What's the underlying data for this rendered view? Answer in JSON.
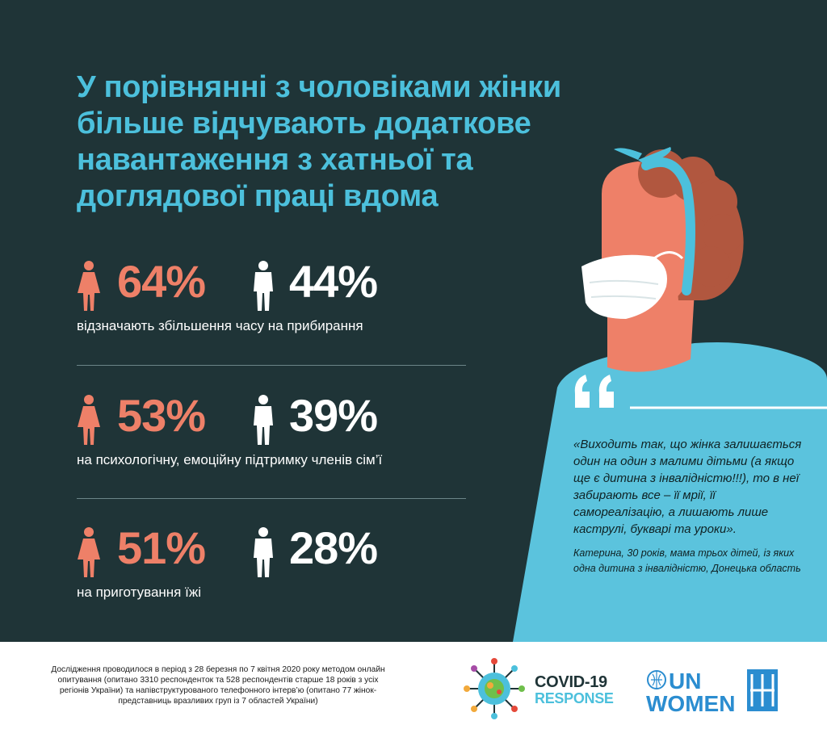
{
  "title": "У порівнянні з чоловіками жінки більше відчувають додаткове навантаження з хатньої та доглядової праці вдома",
  "stats": [
    {
      "women": "64%",
      "men": "44%",
      "caption": "відзначають збільшення часу на прибирання"
    },
    {
      "women": "53%",
      "men": "39%",
      "caption": "на психологічну, емоційну підтримку членів сім’ї"
    },
    {
      "women": "51%",
      "men": "28%",
      "caption": "на приготування їжі"
    }
  ],
  "quote": {
    "text": "«Виходить так, що жінка залишається один на один з малими дітьми (а якщо ще є дитина з інвалідністю!!!), то в неї забирають все – її мрії, її самореалізацію, а лишають лише каструлі, букварі та уроки».",
    "author": "Катерина, 30 років, мама трьох дітей, із яких одна дитина з інвалідністю, Донецька область"
  },
  "footer": {
    "note": "Дослідження проводилося в період з 28 березня по 7 квітня 2020 року методом онлайн опитування (опитано 3310 респондентoк та 528 респондентів старше 18 років з усіх регіонів України) та напівструктурованого телефонного інтерв’ю (опитано 77 жінок-представниць вразливих груп із 7 областей України)",
    "covid_line1": "COVID-19",
    "covid_line2": "RESPONSE"
  },
  "colors": {
    "background": "#1f3437",
    "accent_blue": "#4cc0dc",
    "accent_coral": "#ee8068",
    "shirt": "#5bc3dd"
  },
  "icons": [
    "woman-icon",
    "man-icon",
    "quote-mark-icon",
    "covid-response-logo",
    "un-women-logo"
  ]
}
